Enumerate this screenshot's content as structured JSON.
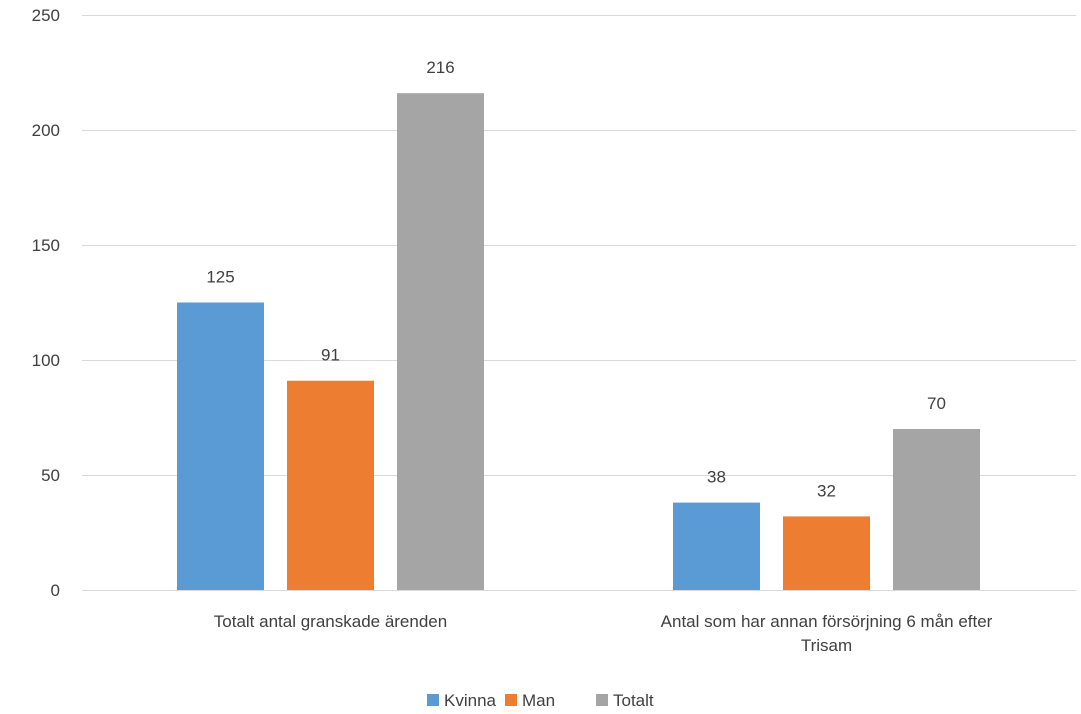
{
  "chart_data": {
    "type": "bar",
    "categories": [
      "Totalt antal granskade ärenden",
      "Antal som har annan försörjning 6 mån efter Trisam"
    ],
    "series": [
      {
        "name": "Kvinna",
        "values": [
          125,
          38
        ],
        "color": "#5B9BD5"
      },
      {
        "name": "Man",
        "values": [
          91,
          32
        ],
        "color": "#ED7D31"
      },
      {
        "name": "Totalt",
        "values": [
          216,
          70
        ],
        "color": "#A5A5A5"
      }
    ],
    "yticks": [
      0,
      50,
      100,
      150,
      200,
      250
    ],
    "ylim": [
      0,
      250
    ],
    "grid": true,
    "data_labels": true,
    "legend_position": "bottom"
  }
}
